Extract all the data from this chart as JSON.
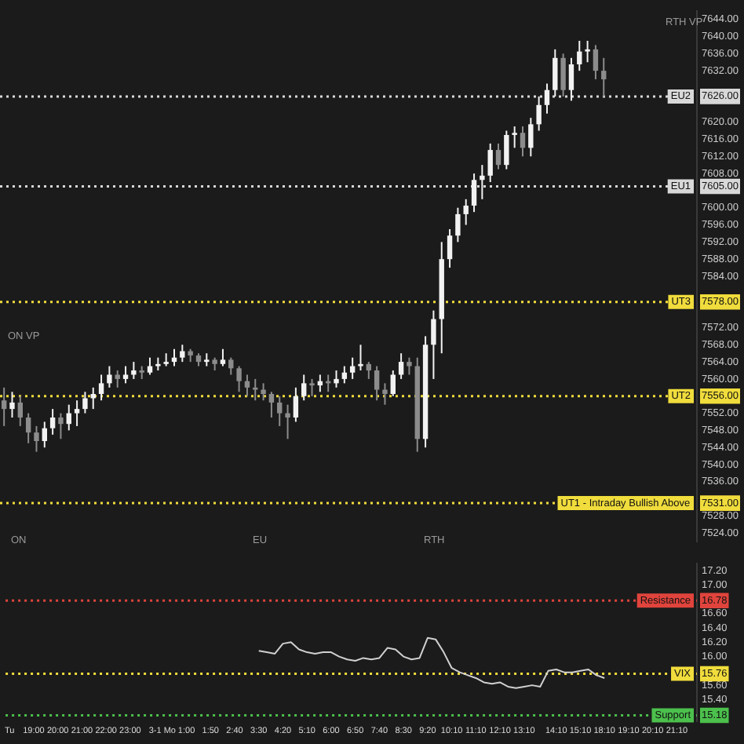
{
  "chart_data": [
    {
      "type": "candlestick",
      "categories": [
        null,
        null,
        null,
        null,
        null,
        null,
        null,
        null,
        null,
        null,
        null,
        null,
        null,
        null,
        null,
        null,
        null,
        null,
        null,
        null,
        null,
        null,
        null,
        null,
        null,
        null,
        null,
        null,
        null,
        null,
        null,
        null,
        null,
        null,
        null,
        null,
        null,
        null,
        null,
        null,
        null,
        null,
        null,
        null,
        null,
        null,
        null,
        null,
        null,
        null,
        null,
        null,
        null,
        null,
        null,
        null,
        null,
        null,
        null,
        null,
        null,
        null,
        null,
        null,
        null,
        null,
        null,
        null,
        null,
        null,
        null,
        null,
        null,
        null,
        null,
        null,
        null,
        null,
        null,
        null,
        null,
        null,
        null,
        null,
        null,
        null
      ],
      "ohlc": [
        [
          7555,
          7558,
          7549,
          7553
        ],
        [
          7553,
          7557,
          7551,
          7554.5
        ],
        [
          7554.5,
          7556,
          7549,
          7551
        ],
        [
          7551,
          7552,
          7545,
          7547.5
        ],
        [
          7547.5,
          7549,
          7543,
          7545.5
        ],
        [
          7545.5,
          7550,
          7544,
          7548.5
        ],
        [
          7548.5,
          7553,
          7547,
          7551
        ],
        [
          7551,
          7552,
          7546,
          7549.5
        ],
        [
          7549.5,
          7554,
          7548,
          7552
        ],
        [
          7552,
          7555,
          7549,
          7553
        ],
        [
          7553,
          7557,
          7552,
          7555.5
        ],
        [
          7555.5,
          7558,
          7553,
          7556.5
        ],
        [
          7556.5,
          7561,
          7555,
          7559
        ],
        [
          7559,
          7563,
          7558,
          7561
        ],
        [
          7561,
          7562,
          7558,
          7560
        ],
        [
          7560,
          7563,
          7559,
          7561
        ],
        [
          7561,
          7564,
          7560,
          7562
        ],
        [
          7562,
          7563,
          7560,
          7561.5
        ],
        [
          7561.5,
          7565,
          7561,
          7563
        ],
        [
          7563,
          7565,
          7562,
          7563.5
        ],
        [
          7563.5,
          7566,
          7563,
          7564
        ],
        [
          7564,
          7567,
          7563,
          7565
        ],
        [
          7565,
          7568,
          7564,
          7566.5
        ],
        [
          7566.5,
          7567,
          7564,
          7565.5
        ],
        [
          7565.5,
          7566,
          7563,
          7564
        ],
        [
          7564,
          7566,
          7563,
          7564.5
        ],
        [
          7564.5,
          7565,
          7562,
          7563.5
        ],
        [
          7563.5,
          7567,
          7563,
          7564.5
        ],
        [
          7564.5,
          7565,
          7561,
          7562.5
        ],
        [
          7562.5,
          7563,
          7557,
          7559.5
        ],
        [
          7559.5,
          7561,
          7556,
          7558
        ],
        [
          7558,
          7560,
          7555,
          7557.5
        ],
        [
          7557.5,
          7559,
          7555,
          7556.5
        ],
        [
          7556.5,
          7557,
          7551,
          7554.5
        ],
        [
          7554.5,
          7556,
          7549,
          7552
        ],
        [
          7552,
          7554,
          7546,
          7551
        ],
        [
          7551,
          7558,
          7550,
          7556
        ],
        [
          7556,
          7561,
          7555,
          7559
        ],
        [
          7559,
          7560,
          7556,
          7558.5
        ],
        [
          7558.5,
          7561,
          7557,
          7559.5
        ],
        [
          7559.5,
          7561,
          7557,
          7559
        ],
        [
          7559,
          7562,
          7558,
          7560
        ],
        [
          7560,
          7563,
          7559,
          7561.5
        ],
        [
          7561.5,
          7565,
          7560,
          7563
        ],
        [
          7563,
          7568,
          7562,
          7563.5
        ],
        [
          7563.5,
          7564,
          7560,
          7562
        ],
        [
          7562,
          7563,
          7555,
          7557.5
        ],
        [
          7557.5,
          7559,
          7554,
          7556.5
        ],
        [
          7556.5,
          7562,
          7556,
          7561
        ],
        [
          7561,
          7566,
          7560,
          7564
        ],
        [
          7564,
          7565,
          7561,
          7563
        ],
        [
          7563,
          7565,
          7543,
          7546
        ],
        [
          7546,
          7570,
          7544,
          7568
        ],
        [
          7568,
          7576,
          7560,
          7574
        ],
        [
          7574,
          7592,
          7566,
          7588
        ],
        [
          7588,
          7595,
          7586,
          7593.5
        ],
        [
          7593.5,
          7600,
          7592,
          7598.5
        ],
        [
          7598.5,
          7602,
          7596,
          7600.5
        ],
        [
          7600.5,
          7608,
          7599,
          7606.5
        ],
        [
          7606.5,
          7610,
          7602,
          7607.5
        ],
        [
          7607.5,
          7615,
          7606,
          7613.5
        ],
        [
          7613.5,
          7615,
          7609,
          7610
        ],
        [
          7610,
          7618,
          7609,
          7617
        ],
        [
          7617,
          7619,
          7614,
          7617.5
        ],
        [
          7617.5,
          7619,
          7612,
          7614
        ],
        [
          7614,
          7621,
          7612,
          7619.5
        ],
        [
          7619.5,
          7626,
          7618,
          7624
        ],
        [
          7624,
          7629,
          7622,
          7627.5
        ],
        [
          7627.5,
          7637,
          7626,
          7635
        ],
        [
          7635,
          7636,
          7626,
          7627.5
        ],
        [
          7627.5,
          7635,
          7625,
          7633.5
        ],
        [
          7633.5,
          7639,
          7632,
          7636.5
        ],
        [
          7636.5,
          7639,
          7634,
          7637
        ],
        [
          7637,
          7638,
          7630,
          7632
        ],
        [
          7632,
          7635,
          7626,
          7630
        ],
        null,
        null,
        null,
        null,
        null,
        null,
        null,
        null,
        null,
        null,
        null
      ],
      "ylim": [
        7522,
        7646
      ],
      "yticks": [
        {
          "value": 7524,
          "label": "7524.00"
        },
        {
          "value": 7528,
          "label": "7528.00"
        },
        {
          "value": 7531,
          "label": "7531.00"
        },
        {
          "value": 7536,
          "label": "7536.00"
        },
        {
          "value": 7540,
          "label": "7540.00"
        },
        {
          "value": 7544,
          "label": "7544.00"
        },
        {
          "value": 7548,
          "label": "7548.00"
        },
        {
          "value": 7552,
          "label": "7552.00"
        },
        {
          "value": 7556,
          "label": "7556.00"
        },
        {
          "value": 7560,
          "label": "7560.00"
        },
        {
          "value": 7564,
          "label": "7564.00"
        },
        {
          "value": 7568,
          "label": "7568.00"
        },
        {
          "value": 7572,
          "label": "7572.00"
        },
        {
          "value": 7578,
          "label": "7578.00"
        },
        {
          "value": 7584,
          "label": "7584.00"
        },
        {
          "value": 7588,
          "label": "7588.00"
        },
        {
          "value": 7592,
          "label": "7592.00"
        },
        {
          "value": 7596,
          "label": "7596.00"
        },
        {
          "value": 7600,
          "label": "7600.00"
        },
        {
          "value": 7605,
          "label": "7605.00"
        },
        {
          "value": 7608,
          "label": "7608.00"
        },
        {
          "value": 7612,
          "label": "7612.00"
        },
        {
          "value": 7616,
          "label": "7616.00"
        },
        {
          "value": 7620,
          "label": "7620.00"
        },
        {
          "value": 7626,
          "label": "7626.00"
        },
        {
          "value": 7632,
          "label": "7632.00"
        },
        {
          "value": 7636,
          "label": "7636.00"
        },
        {
          "value": 7640,
          "label": "7640.00"
        },
        {
          "value": 7644,
          "label": "7644.00"
        }
      ],
      "tick_labels": "y",
      "ref_lines": [
        {
          "axis": "y",
          "value": 7626,
          "label": "EU2",
          "color": "#d8d8d8",
          "line_style": "dotted"
        },
        {
          "axis": "y",
          "value": 7605,
          "label": "EU1",
          "color": "#d8d8d8",
          "line_style": "dotted"
        },
        {
          "axis": "y",
          "value": 7578,
          "label": "UT3",
          "color": "#f0dc3c",
          "line_style": "dotted"
        },
        {
          "axis": "y",
          "value": 7556,
          "label": "UT2",
          "color": "#f0dc3c",
          "line_style": "dotted"
        },
        {
          "axis": "y",
          "value": 7531,
          "label": "UT1 - Intraday Bullish Above",
          "color": "#f0dc3c",
          "line_style": "dotted"
        }
      ],
      "annotations": [
        "ON VP",
        "RTH VP",
        "ON",
        "EU",
        "RTH"
      ]
    },
    {
      "type": "line",
      "categories": [
        "Tu",
        null,
        null,
        "19:00",
        null,
        null,
        "20:00",
        null,
        null,
        "21:00",
        null,
        null,
        "22:00",
        null,
        null,
        "23:00",
        null,
        null,
        null,
        "3-1 Mo",
        null,
        null,
        "1:00",
        null,
        null,
        "1:50",
        null,
        null,
        "2:40",
        null,
        null,
        "3:30",
        null,
        null,
        "4:20",
        null,
        null,
        "5:10",
        null,
        null,
        "6:00",
        null,
        null,
        "6:50",
        null,
        null,
        "7:40",
        null,
        null,
        "8:30",
        null,
        null,
        "9:20",
        null,
        null,
        "10:10",
        null,
        null,
        "11:10",
        null,
        null,
        "12:10",
        null,
        null,
        "13:10",
        null,
        null,
        null,
        "14:10",
        null,
        null,
        "15:10",
        null,
        null,
        "18:10",
        null,
        null,
        "19:10",
        null,
        null,
        "20:10",
        null,
        null,
        "21:10",
        null,
        null
      ],
      "values": [
        null,
        null,
        null,
        null,
        null,
        null,
        null,
        null,
        null,
        null,
        null,
        null,
        null,
        null,
        null,
        null,
        null,
        null,
        null,
        null,
        null,
        null,
        null,
        null,
        null,
        null,
        null,
        null,
        null,
        null,
        null,
        16.08,
        16.06,
        16.04,
        16.18,
        16.2,
        16.1,
        16.06,
        16.04,
        16.06,
        16.06,
        16.0,
        15.96,
        15.94,
        15.98,
        15.96,
        15.98,
        16.12,
        16.1,
        16.0,
        15.96,
        15.98,
        16.26,
        16.24,
        16.06,
        15.84,
        15.78,
        15.74,
        15.7,
        15.64,
        15.62,
        15.64,
        15.58,
        15.56,
        15.58,
        15.6,
        15.58,
        15.8,
        15.82,
        15.78,
        15.78,
        15.8,
        15.82,
        15.74,
        15.7,
        null,
        null,
        null,
        null,
        null,
        null,
        null,
        null,
        null,
        null,
        null
      ],
      "color": "#d0d0d0",
      "ylim": [
        15.1,
        17.3
      ],
      "yticks": [
        {
          "value": 15.18,
          "label": "15.18"
        },
        {
          "value": 15.4,
          "label": "15.40"
        },
        {
          "value": 15.6,
          "label": "15.60"
        },
        {
          "value": 15.76,
          "label": "15.76"
        },
        {
          "value": 16,
          "label": "16.00"
        },
        {
          "value": 16.2,
          "label": "16.20"
        },
        {
          "value": 16.4,
          "label": "16.40"
        },
        {
          "value": 16.6,
          "label": "16.60"
        },
        {
          "value": 16.78,
          "label": "16.78"
        },
        {
          "value": 17,
          "label": "17.00"
        },
        {
          "value": 17.2,
          "label": "17.20"
        }
      ],
      "ref_lines": [
        {
          "axis": "y",
          "value": 16.78,
          "label": "Resistance",
          "color": "#e0443c",
          "line_style": "dotted"
        },
        {
          "axis": "y",
          "value": 15.76,
          "label": "VIX",
          "color": "#f0dc3c",
          "line_style": "dotted"
        },
        {
          "axis": "y",
          "value": 15.18,
          "label": "Support",
          "color": "#4cc04c",
          "line_style": "dotted"
        }
      ]
    }
  ]
}
